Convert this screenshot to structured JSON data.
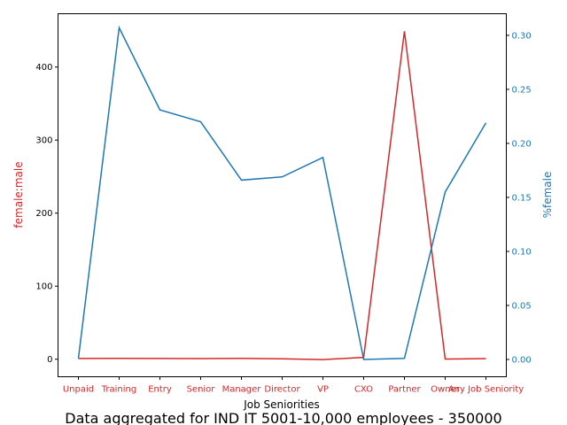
{
  "chart_data": {
    "type": "line",
    "title": "Data aggregated for IND IT 5001-10,000 employees - 350000",
    "xlabel": "Job Seniorities",
    "ylabel_left": "female:male",
    "ylabel_right": "%female",
    "categories": [
      "Unpaid",
      "Training",
      "Entry",
      "Senior",
      "Manager",
      "Director",
      "VP",
      "CXO",
      "Partner",
      "Owner",
      "Any Job Seniority"
    ],
    "ylim_left": [
      -24,
      473
    ],
    "ylim_right": [
      -0.016,
      0.32
    ],
    "yticks_left": [
      "0",
      "100",
      "200",
      "300",
      "400"
    ],
    "yticks_right": [
      "0.00",
      "0.05",
      "0.10",
      "0.15",
      "0.20",
      "0.25",
      "0.30"
    ],
    "colors": {
      "left_series": "#d62728",
      "right_series": "#1f77b4"
    },
    "series": [
      {
        "axis": "left",
        "values": [
          1.0,
          1.2,
          1.0,
          0.8,
          1.2,
          0.6,
          -0.5,
          2.5,
          449,
          0.2,
          0.9
        ]
      },
      {
        "axis": "right",
        "values": [
          0.001,
          0.307,
          0.231,
          0.22,
          0.166,
          0.169,
          0.187,
          0.0,
          0.001,
          0.155,
          0.219
        ]
      }
    ]
  }
}
